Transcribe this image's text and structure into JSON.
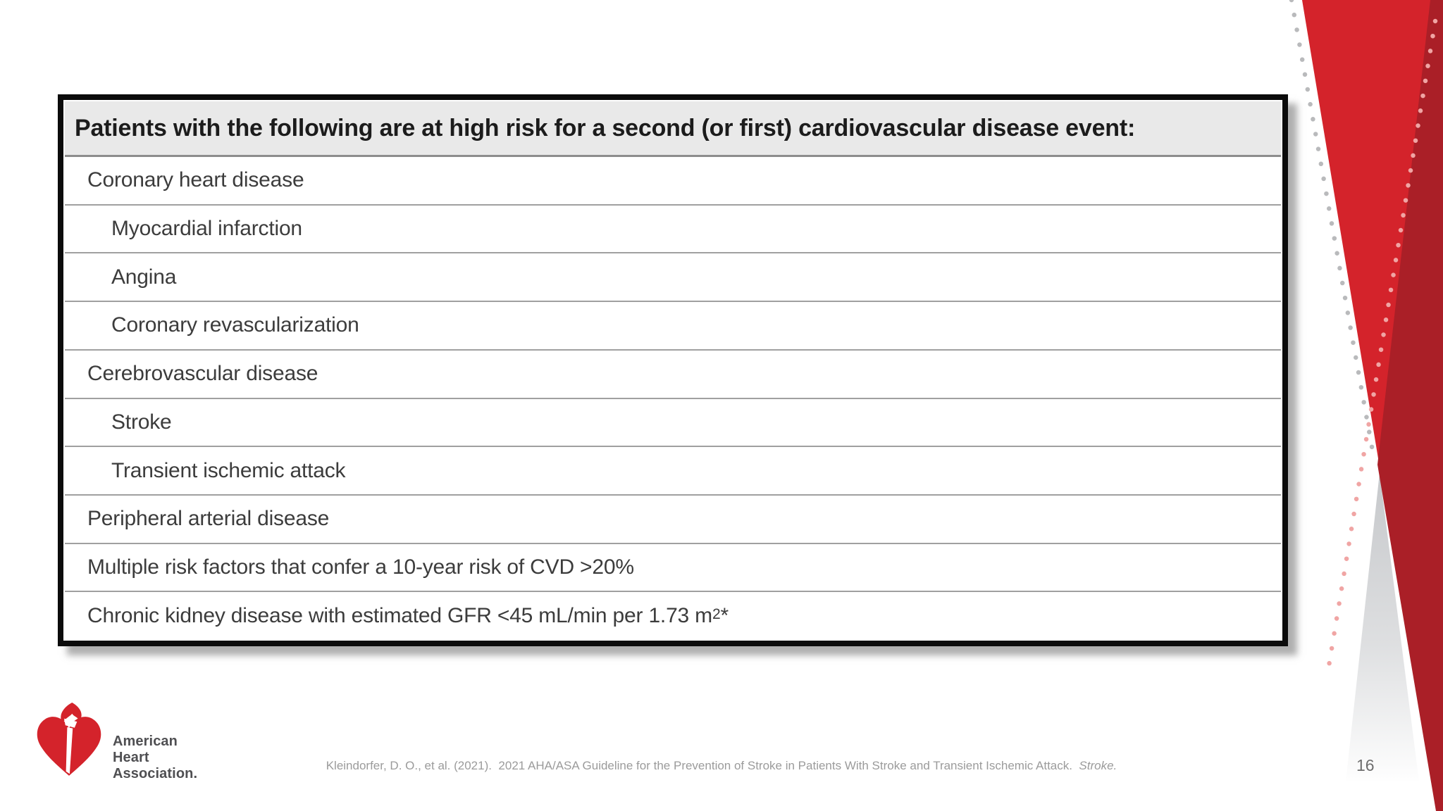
{
  "table": {
    "header": "Patients with the following are at high risk for a second (or first) cardiovascular disease event:",
    "rows": [
      {
        "label": "Coronary heart disease",
        "indent": 1
      },
      {
        "label": "Myocardial infarction",
        "indent": 2
      },
      {
        "label": "Angina",
        "indent": 2
      },
      {
        "label": "Coronary revascularization",
        "indent": 2
      },
      {
        "label": "Cerebrovascular disease",
        "indent": 1
      },
      {
        "label": "Stroke",
        "indent": 2
      },
      {
        "label": "Transient ischemic attack",
        "indent": 2
      },
      {
        "label": "Peripheral arterial disease",
        "indent": 1
      },
      {
        "label": "Multiple risk factors that confer a 10-year risk of CVD >20%",
        "indent": 1
      },
      {
        "label": "Chronic kidney disease with estimated GFR <45 mL/min per 1.73 m",
        "indent": 1,
        "superscript": "2",
        "suffix": "*"
      }
    ]
  },
  "footer": {
    "citation_text": "Kleindorfer, D. O., et al. (2021).  2021 AHA/ASA Guideline for the Prevention of Stroke in Patients With Stroke and Transient Ischemic Attack.  ",
    "citation_journal": "Stroke.",
    "page_number": "16"
  },
  "logo": {
    "line1": "American",
    "line2": "Heart",
    "line3": "Association."
  },
  "colors": {
    "aha_red": "#d4232b",
    "aha_dark_red": "#aa1f27",
    "ribbon_gray": "#c3c5c8",
    "dot_gray": "#b9babc",
    "dot_pink": "#f0a5a4",
    "header_bg": "#e9e9e9"
  }
}
